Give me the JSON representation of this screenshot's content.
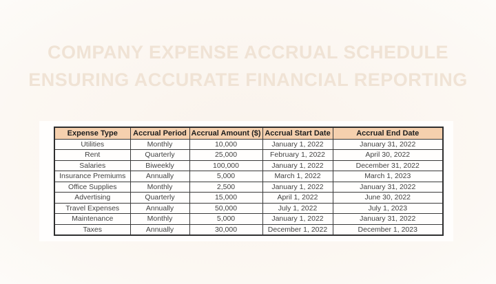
{
  "title": {
    "line1": "COMPANY EXPENSE ACCRUAL SCHEDULE",
    "line2": "ENSURING ACCURATE FINANCIAL REPORTING"
  },
  "table": {
    "columns": [
      "Expense Type",
      "Accrual Period",
      "Accrual Amount ($)",
      "Accrual Start Date",
      "Accrual End Date"
    ],
    "rows": [
      [
        "Utilities",
        "Monthly",
        "10,000",
        "January 1, 2022",
        "January 31, 2022"
      ],
      [
        "Rent",
        "Quarterly",
        "25,000",
        "February 1, 2022",
        "April 30, 2022"
      ],
      [
        "Salaries",
        "Biweekly",
        "100,000",
        "January 1, 2022",
        "December 31, 2022"
      ],
      [
        "Insurance Premiums",
        "Annually",
        "5,000",
        "March 1, 2022",
        "March 1, 2023"
      ],
      [
        "Office Supplies",
        "Monthly",
        "2,500",
        "January 1, 2022",
        "January 31, 2022"
      ],
      [
        "Advertising",
        "Quarterly",
        "15,000",
        "April 1, 2022",
        "June 30, 2022"
      ],
      [
        "Travel Expenses",
        "Annually",
        "50,000",
        "July 1, 2022",
        "July 1, 2023"
      ],
      [
        "Maintenance",
        "Monthly",
        "5,000",
        "January 1, 2022",
        "January 31, 2022"
      ],
      [
        "Taxes",
        "Annually",
        "30,000",
        "December 1, 2022",
        "December 1, 2023"
      ]
    ]
  },
  "colors": {
    "page_bg": "#faf3ec",
    "panel_bg": "#fffefd",
    "header_bg": "#f5d0ae",
    "border": "#383838",
    "title_text": "#f0e3d5",
    "cell_text": "#424242"
  }
}
